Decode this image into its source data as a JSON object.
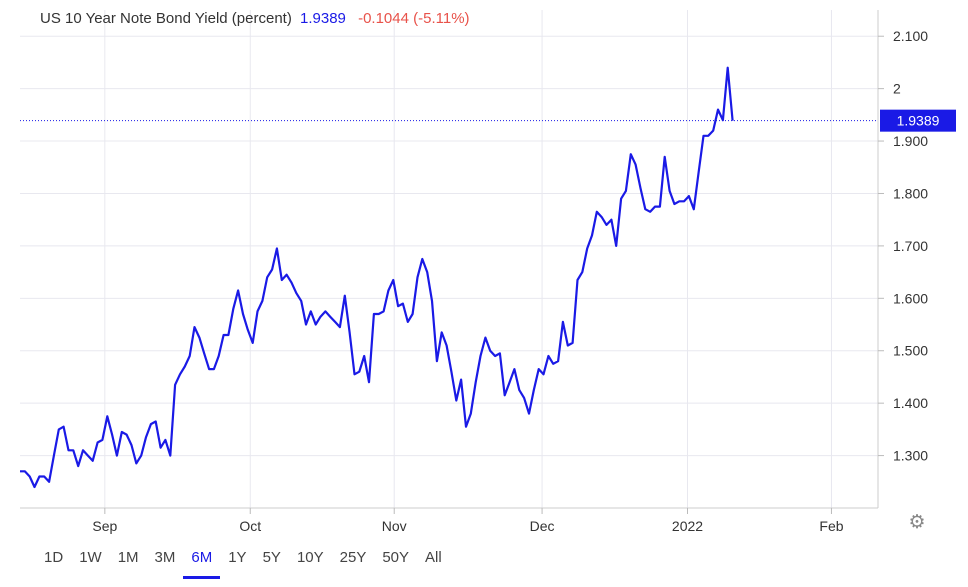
{
  "legend": {
    "name": "US 10 Year Note Bond Yield (percent)",
    "value": "1.9389",
    "change": "-0.1044 (-5.11%)"
  },
  "current_price_label": "1.9389",
  "ranges": [
    {
      "label": "1D",
      "active": false
    },
    {
      "label": "1W",
      "active": false
    },
    {
      "label": "1M",
      "active": false
    },
    {
      "label": "3M",
      "active": false
    },
    {
      "label": "6M",
      "active": true
    },
    {
      "label": "1Y",
      "active": false
    },
    {
      "label": "5Y",
      "active": false
    },
    {
      "label": "10Y",
      "active": false
    },
    {
      "label": "25Y",
      "active": false
    },
    {
      "label": "50Y",
      "active": false
    },
    {
      "label": "All",
      "active": false
    }
  ],
  "icons": {
    "settings": "gear-icon"
  },
  "colors": {
    "series": "#1a1ae6",
    "change_negative": "#e8524a",
    "grid": "#e8e8ef",
    "axis": "#cccccc"
  },
  "chart_data": {
    "type": "line",
    "title": "US 10 Year Note Bond Yield (percent)",
    "xlabel": "",
    "ylabel": "",
    "ylim": [
      1.2,
      2.15
    ],
    "y_ticks": [
      1.3,
      1.4,
      1.5,
      1.6,
      1.7,
      1.8,
      1.9,
      2.0,
      2.1
    ],
    "y_tick_labels": [
      "1.300",
      "1.400",
      "1.500",
      "1.600",
      "1.700",
      "1.800",
      "1.900",
      "2",
      "2.100"
    ],
    "x_ticks": [
      {
        "label": "Sep",
        "index": 17.5
      },
      {
        "label": "Oct",
        "index": 47.5
      },
      {
        "label": "Nov",
        "index": 77.2
      },
      {
        "label": "Dec",
        "index": 107.7
      },
      {
        "label": "2022",
        "index": 137.7
      },
      {
        "label": "Feb",
        "index": 167.4
      }
    ],
    "x_range": [
      0,
      177
    ],
    "current_value": 1.9389,
    "grid": true,
    "series": [
      {
        "values": [
          1.27,
          1.27,
          1.26,
          1.24,
          1.26,
          1.26,
          1.25,
          1.3,
          1.35,
          1.355,
          1.31,
          1.31,
          1.28,
          1.31,
          1.3,
          1.29,
          1.325,
          1.33,
          1.375,
          1.34,
          1.3,
          1.345,
          1.34,
          1.32,
          1.285,
          1.3,
          1.335,
          1.36,
          1.365,
          1.315,
          1.33,
          1.3,
          1.435,
          1.455,
          1.47,
          1.49,
          1.545,
          1.525,
          1.495,
          1.465,
          1.465,
          1.49,
          1.53,
          1.53,
          1.58,
          1.615,
          1.57,
          1.54,
          1.515,
          1.575,
          1.595,
          1.64,
          1.655,
          1.695,
          1.635,
          1.645,
          1.63,
          1.61,
          1.595,
          1.55,
          1.575,
          1.55,
          1.565,
          1.575,
          1.565,
          1.555,
          1.545,
          1.605,
          1.535,
          1.455,
          1.46,
          1.49,
          1.44,
          1.57,
          1.57,
          1.575,
          1.615,
          1.635,
          1.585,
          1.59,
          1.555,
          1.57,
          1.64,
          1.675,
          1.65,
          1.595,
          1.48,
          1.535,
          1.51,
          1.46,
          1.405,
          1.445,
          1.355,
          1.38,
          1.44,
          1.49,
          1.525,
          1.5,
          1.49,
          1.495,
          1.415,
          1.44,
          1.465,
          1.425,
          1.41,
          1.38,
          1.425,
          1.465,
          1.455,
          1.49,
          1.475,
          1.48,
          1.555,
          1.51,
          1.515,
          1.635,
          1.65,
          1.695,
          1.72,
          1.765,
          1.755,
          1.74,
          1.75,
          1.7,
          1.79,
          1.805,
          1.875,
          1.855,
          1.81,
          1.77,
          1.765,
          1.775,
          1.775,
          1.87,
          1.805,
          1.78,
          1.785,
          1.785,
          1.795,
          1.77,
          1.84,
          1.91,
          1.91,
          1.92,
          1.96,
          1.94,
          2.04,
          1.9389
        ]
      }
    ]
  }
}
